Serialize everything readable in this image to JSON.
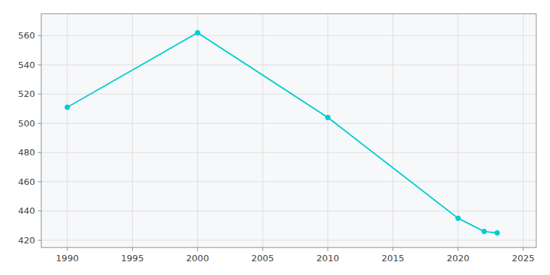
{
  "chart_data": {
    "type": "line",
    "x": [
      1990,
      2000,
      2010,
      2020,
      2022,
      2023
    ],
    "values": [
      511,
      562,
      504,
      435,
      426,
      425
    ],
    "color": "#00CED1",
    "marker": "circle",
    "xlim": [
      1988,
      2026
    ],
    "ylim": [
      415,
      575
    ],
    "xticks": [
      1990,
      1995,
      2000,
      2005,
      2010,
      2015,
      2020,
      2025
    ],
    "yticks": [
      420,
      440,
      460,
      480,
      500,
      520,
      540,
      560
    ],
    "grid": true
  }
}
